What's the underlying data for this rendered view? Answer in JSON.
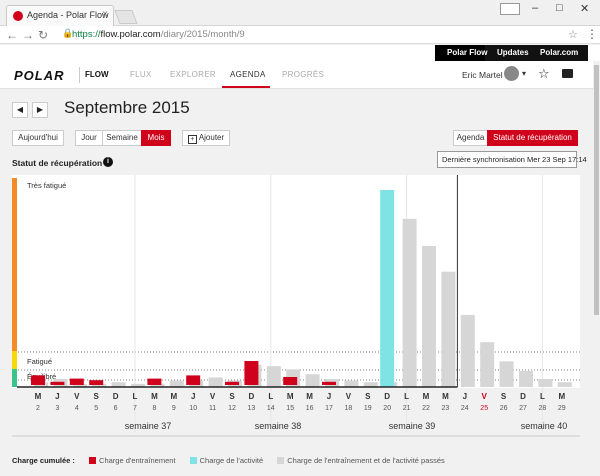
{
  "browser": {
    "tab_title": "Agenda - Polar Flow",
    "url_scheme": "https://",
    "url_host": "flow.polar.com",
    "url_path": "/diary/2015/month/9"
  },
  "topbar": {
    "items": [
      "Polar Flow",
      "Updates",
      "Polar.com"
    ]
  },
  "app": {
    "logo": "POLAR",
    "product": "FLOW",
    "nav": [
      "FLUX",
      "EXPLORER",
      "AGENDA",
      "PROGRÈS"
    ],
    "user_name": "Eric Martel"
  },
  "page": {
    "month_title": "Septembre 2015",
    "today_label": "Aujourd'hui",
    "view_buttons": [
      "Jour",
      "Semaine",
      "Mois"
    ],
    "add_label": "Ajouter",
    "mode_buttons": [
      "Agenda",
      "Statut de récupération"
    ],
    "section_title": "Statut de récupération",
    "tooltip": "Dernière synchronisation Mer 23 Sep 17:14"
  },
  "colors": {
    "accent": "#d0021b",
    "activity": "#7fe3e6",
    "past": "#d6d6d6",
    "very_tired": "#f28c28",
    "tired": "#f5d90a",
    "balanced": "#3cc28b"
  },
  "chart_data": {
    "type": "bar",
    "zone_labels": [
      "Très fatigué",
      "Fatigué",
      "Équilibré"
    ],
    "days": [
      {
        "l": "M",
        "d": "2"
      },
      {
        "l": "J",
        "d": "3"
      },
      {
        "l": "V",
        "d": "4"
      },
      {
        "l": "S",
        "d": "5"
      },
      {
        "l": "D",
        "d": "6"
      },
      {
        "l": "L",
        "d": "7"
      },
      {
        "l": "M",
        "d": "8"
      },
      {
        "l": "M",
        "d": "9"
      },
      {
        "l": "J",
        "d": "10"
      },
      {
        "l": "V",
        "d": "11"
      },
      {
        "l": "S",
        "d": "12"
      },
      {
        "l": "D",
        "d": "13"
      },
      {
        "l": "L",
        "d": "14"
      },
      {
        "l": "M",
        "d": "15"
      },
      {
        "l": "M",
        "d": "16"
      },
      {
        "l": "J",
        "d": "17"
      },
      {
        "l": "V",
        "d": "18"
      },
      {
        "l": "S",
        "d": "19"
      },
      {
        "l": "D",
        "d": "20"
      },
      {
        "l": "L",
        "d": "21"
      },
      {
        "l": "M",
        "d": "22"
      },
      {
        "l": "M",
        "d": "23"
      },
      {
        "l": "J",
        "d": "24"
      },
      {
        "l": "V",
        "d": "25"
      },
      {
        "l": "S",
        "d": "26"
      },
      {
        "l": "D",
        "d": "27"
      },
      {
        "l": "L",
        "d": "28"
      },
      {
        "l": "M",
        "d": "29"
      }
    ],
    "highlight_day": "25",
    "week_labels": [
      "semaine 37",
      "semaine 38",
      "semaine 39",
      "semaine 40"
    ],
    "training": [
      6,
      2,
      4,
      3,
      0,
      0,
      4,
      0,
      6,
      0,
      2,
      15,
      0,
      5,
      0,
      2,
      0,
      0,
      0,
      0,
      0,
      0,
      0,
      0,
      0,
      0,
      0,
      0
    ],
    "activity": [
      0,
      0,
      0,
      0,
      0,
      0,
      0,
      0,
      0,
      0,
      0,
      0,
      0,
      0,
      0,
      0,
      0,
      0,
      123,
      0,
      0,
      0,
      0,
      0,
      0,
      0,
      0,
      0
    ],
    "past": [
      3,
      5,
      2,
      2,
      3,
      2,
      2,
      4,
      4,
      6,
      4,
      14,
      13,
      11,
      8,
      5,
      4,
      3,
      3,
      105,
      88,
      72,
      45,
      28,
      16,
      10,
      5,
      3
    ],
    "ymax": 128
  },
  "legend": {
    "title": "Charge cumulée :",
    "items": [
      "Charge d'entraînement",
      "Charge de l'activité",
      "Charge de l'entraînement et de l'activité passés"
    ]
  }
}
